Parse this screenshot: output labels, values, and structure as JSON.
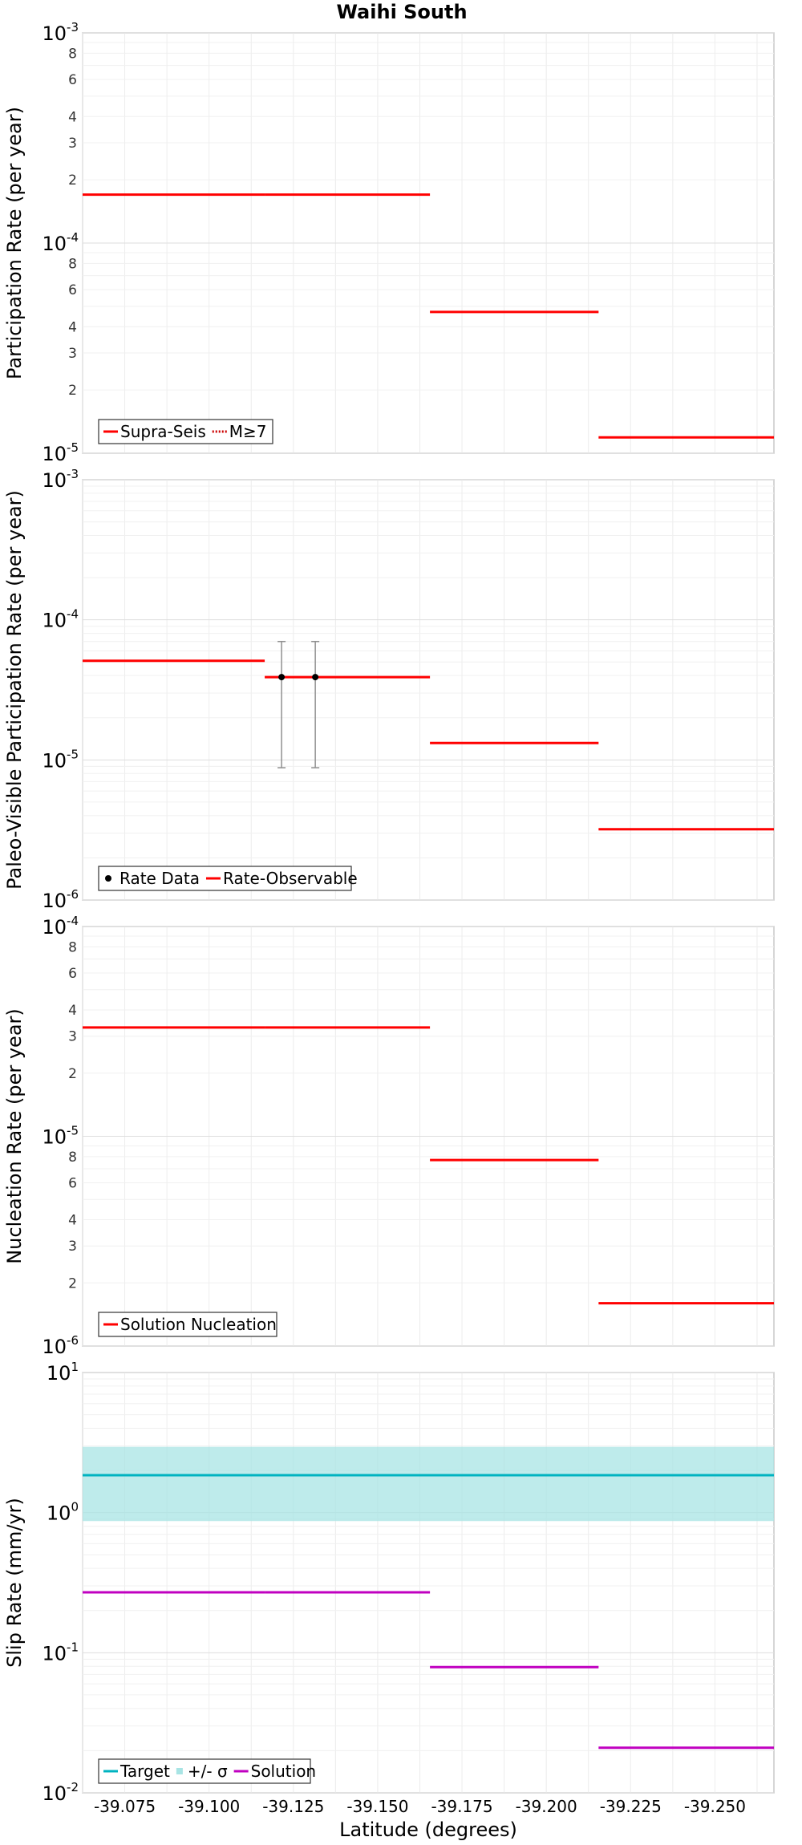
{
  "page": {
    "title": "Waihi South"
  },
  "chart_data": [
    {
      "type": "line",
      "panel": "participation",
      "title": "Waihi South",
      "xlabel": "",
      "ylabel": "Participation Rate (per year)",
      "yscale": "log",
      "ylim": [
        1e-05,
        0.001
      ],
      "xlim": [
        -39.0625,
        -39.2675
      ],
      "xaxis_reversed": true,
      "grid": true,
      "legend_position": "bottom-left",
      "legend": [
        {
          "label": "Supra-Seis",
          "style": "solid",
          "color": "#ff0000"
        },
        {
          "label": "M≥7",
          "style": "dotted",
          "color": "#cc0000"
        }
      ],
      "series": [
        {
          "name": "Supra-Seis",
          "color": "#ff0000",
          "segments": [
            {
              "x0": -39.0625,
              "x1": -39.1165,
              "y": 0.00017
            },
            {
              "x0": -39.1165,
              "x1": -39.1655,
              "y": 0.00017
            },
            {
              "x0": -39.1655,
              "x1": -39.2155,
              "y": 4.7e-05
            },
            {
              "x0": -39.2155,
              "x1": -39.2675,
              "y": 1.19e-05
            }
          ]
        }
      ]
    },
    {
      "type": "line",
      "panel": "paleo",
      "xlabel": "",
      "ylabel": "Paleo-Visible Participation Rate (per year)",
      "yscale": "log",
      "ylim": [
        1e-06,
        0.001
      ],
      "xlim": [
        -39.0625,
        -39.2675
      ],
      "xaxis_reversed": true,
      "grid": true,
      "legend_position": "bottom-left",
      "legend": [
        {
          "label": "Rate Data",
          "style": "point",
          "color": "#000000"
        },
        {
          "label": "Rate-Observable",
          "style": "solid",
          "color": "#ff0000"
        }
      ],
      "series": [
        {
          "name": "Rate-Observable",
          "color": "#ff0000",
          "segments": [
            {
              "x0": -39.0625,
              "x1": -39.1165,
              "y": 5.1e-05
            },
            {
              "x0": -39.1165,
              "x1": -39.1655,
              "y": 3.9e-05
            },
            {
              "x0": -39.1655,
              "x1": -39.2155,
              "y": 1.32e-05
            },
            {
              "x0": -39.2155,
              "x1": -39.2675,
              "y": 3.2e-06
            }
          ]
        },
        {
          "name": "Rate Data",
          "color": "#000000",
          "points": [
            {
              "x": -39.1215,
              "y": 3.9e-05,
              "ylow": 8.8e-06,
              "yhigh": 7e-05
            },
            {
              "x": -39.1315,
              "y": 3.9e-05,
              "ylow": 8.8e-06,
              "yhigh": 7e-05
            }
          ]
        }
      ]
    },
    {
      "type": "line",
      "panel": "nucleation",
      "xlabel": "",
      "ylabel": "Nucleation Rate (per year)",
      "yscale": "log",
      "ylim": [
        1e-06,
        0.0001
      ],
      "xlim": [
        -39.0625,
        -39.2675
      ],
      "xaxis_reversed": true,
      "grid": true,
      "legend_position": "bottom-left",
      "legend": [
        {
          "label": "Solution Nucleation",
          "style": "solid",
          "color": "#ff0000"
        }
      ],
      "series": [
        {
          "name": "Solution Nucleation",
          "color": "#ff0000",
          "segments": [
            {
              "x0": -39.0625,
              "x1": -39.1165,
              "y": 3.3e-05
            },
            {
              "x0": -39.1165,
              "x1": -39.1655,
              "y": 3.3e-05
            },
            {
              "x0": -39.1655,
              "x1": -39.2155,
              "y": 7.7e-06
            },
            {
              "x0": -39.2155,
              "x1": -39.2675,
              "y": 1.6e-06
            }
          ]
        }
      ]
    },
    {
      "type": "line",
      "panel": "slip",
      "xlabel": "Latitude (degrees)",
      "ylabel": "Slip Rate (mm/yr)",
      "yscale": "log",
      "ylim": [
        0.01,
        10
      ],
      "xlim": [
        -39.0625,
        -39.2675
      ],
      "xaxis_reversed": true,
      "grid": true,
      "legend_position": "bottom-left",
      "legend": [
        {
          "label": "Target",
          "style": "solid",
          "color": "#00b3c0"
        },
        {
          "label": "+/- σ",
          "style": "band",
          "color": "#a8e4e4"
        },
        {
          "label": "Solution",
          "style": "solid",
          "color": "#c000c0"
        }
      ],
      "band": {
        "name": "+/- σ",
        "color": "#a8e4e4",
        "ylow": 0.87,
        "yhigh": 2.95
      },
      "series": [
        {
          "name": "Target",
          "color": "#00b3c0",
          "segments": [
            {
              "x0": -39.0625,
              "x1": -39.2675,
              "y": 1.85
            }
          ]
        },
        {
          "name": "Solution",
          "color": "#c000c0",
          "segments": [
            {
              "x0": -39.0625,
              "x1": -39.1165,
              "y": 0.27
            },
            {
              "x0": -39.1165,
              "x1": -39.1655,
              "y": 0.27
            },
            {
              "x0": -39.1655,
              "x1": -39.2155,
              "y": 0.079
            },
            {
              "x0": -39.2155,
              "x1": -39.2675,
              "y": 0.021
            }
          ]
        }
      ]
    }
  ],
  "x_ticks": [
    "-39.075",
    "-39.100",
    "-39.125",
    "-39.150",
    "-39.175",
    "-39.200",
    "-39.225",
    "-39.250"
  ],
  "x_tick_values": [
    -39.075,
    -39.1,
    -39.125,
    -39.15,
    -39.175,
    -39.2,
    -39.225,
    -39.25
  ]
}
